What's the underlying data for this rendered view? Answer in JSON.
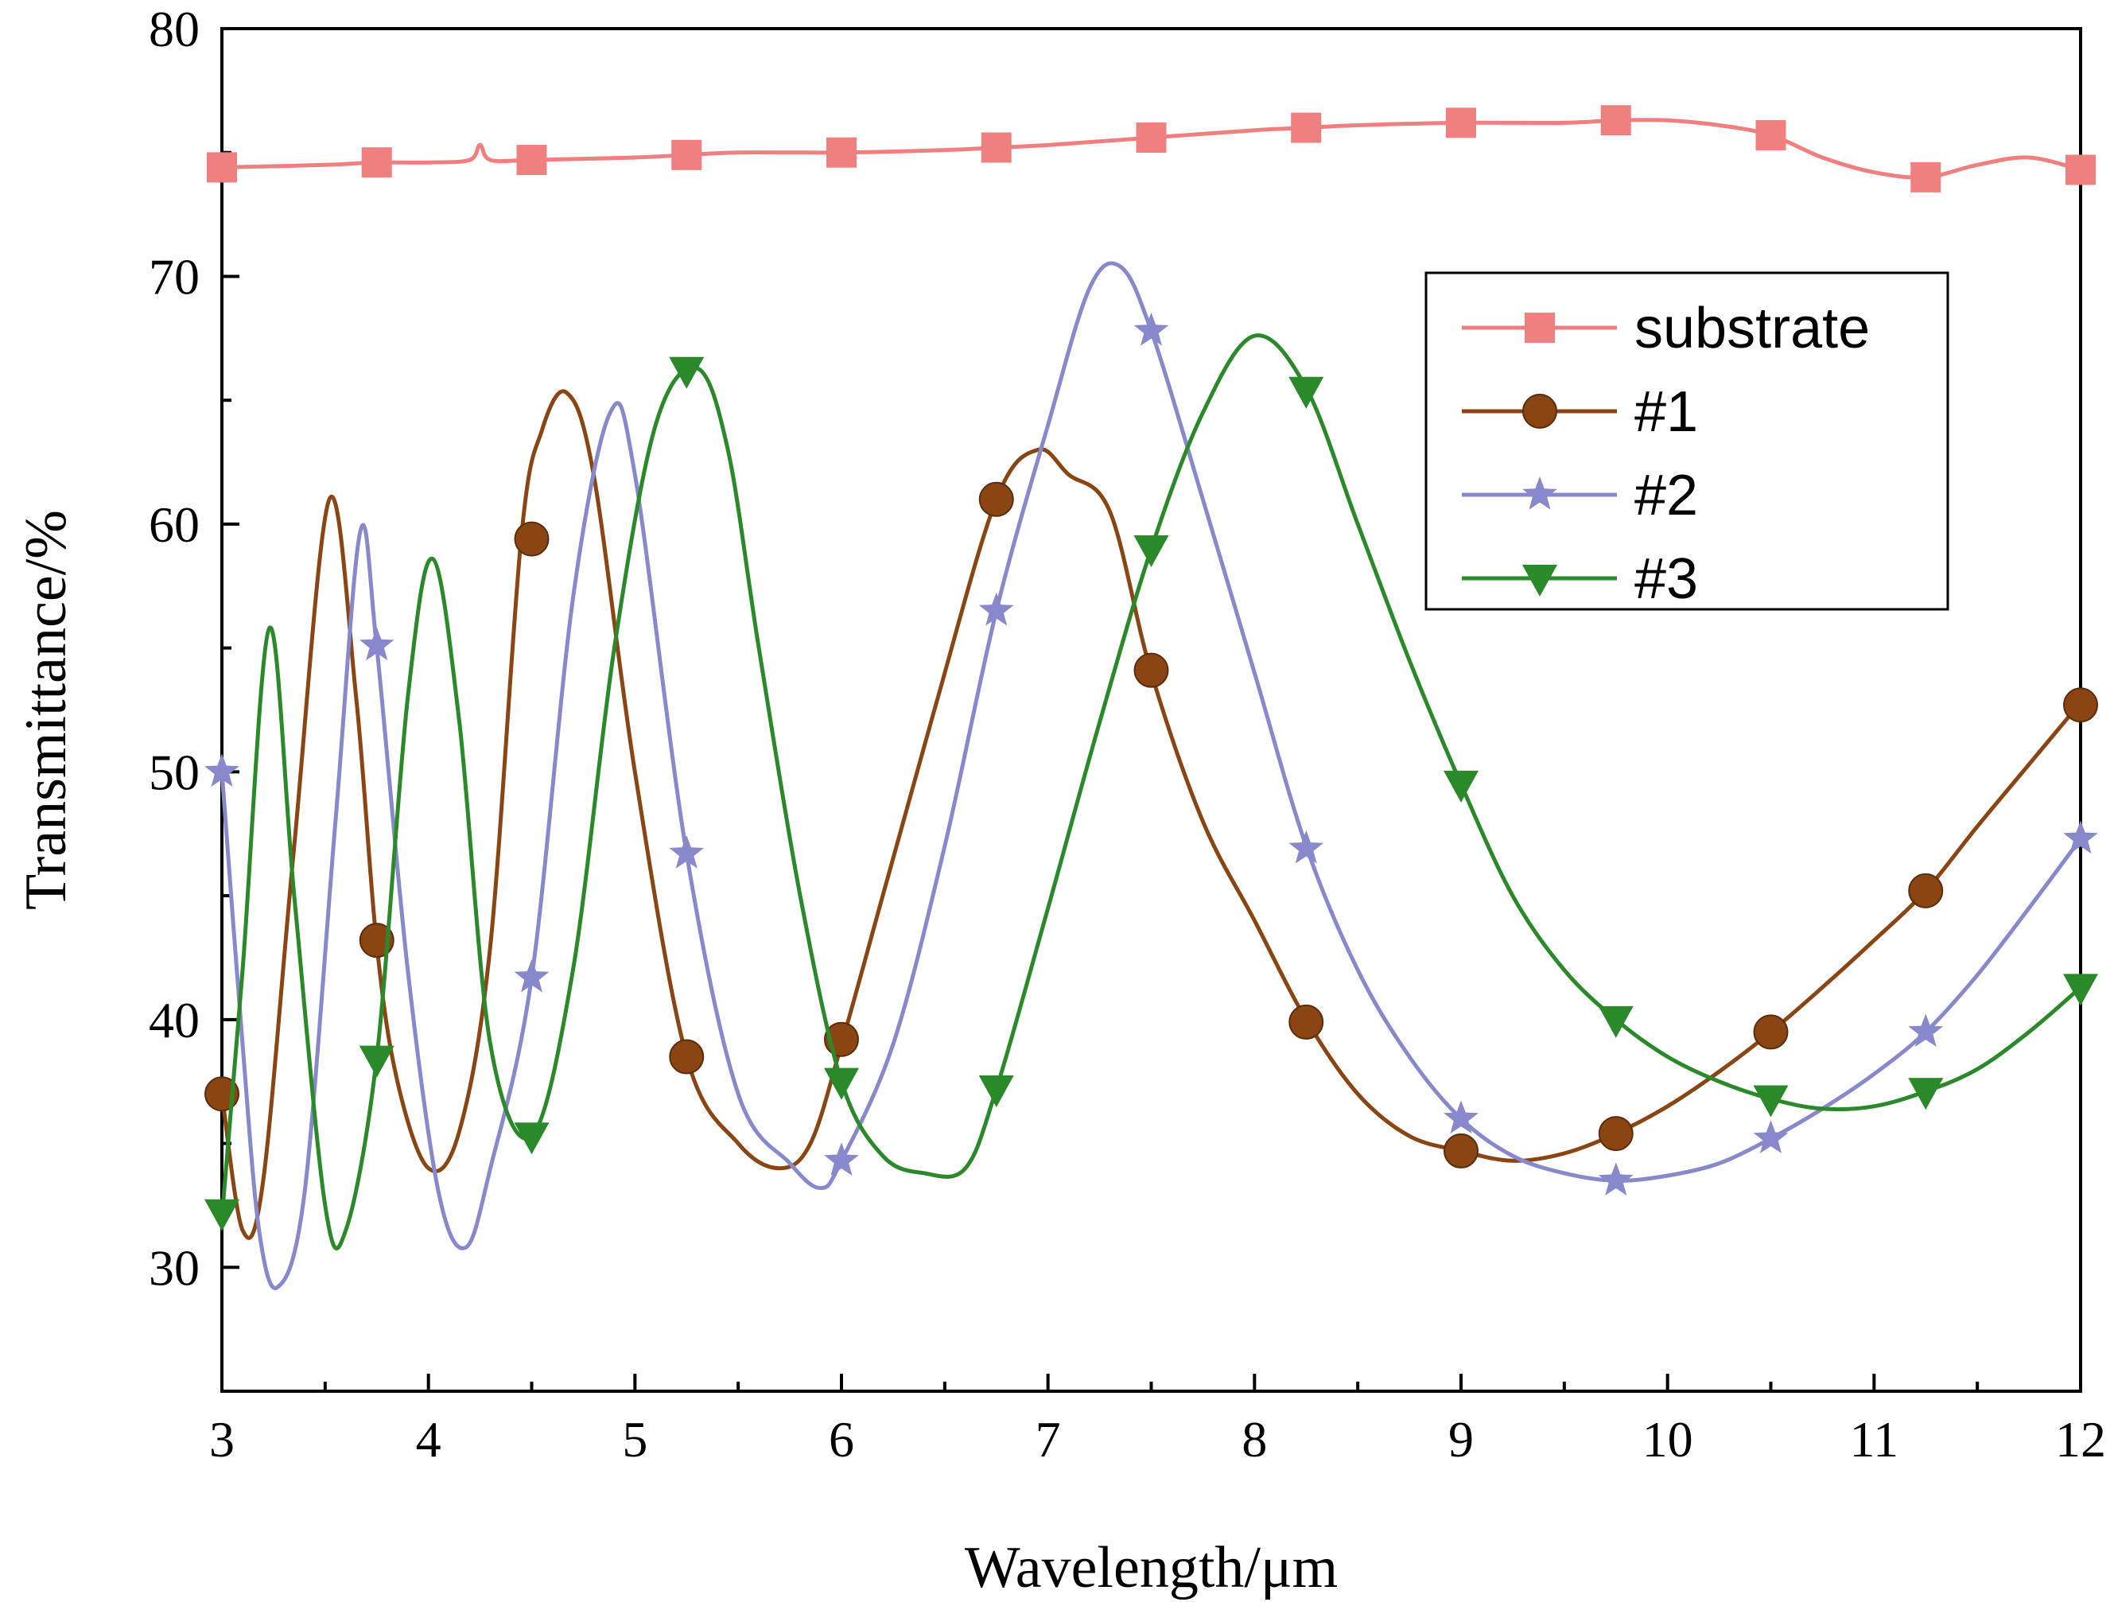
{
  "chart_data": {
    "type": "line",
    "title": "",
    "xlabel": "Wavelength/μm",
    "ylabel": "Transmittance/%",
    "xlim": [
      3,
      12
    ],
    "ylim": [
      25,
      80
    ],
    "xticks": [
      3,
      4,
      5,
      6,
      7,
      8,
      9,
      10,
      11,
      12
    ],
    "yticks": [
      30,
      40,
      50,
      60,
      70,
      80
    ],
    "legend_position": "top-right",
    "series": [
      {
        "name": "substrate",
        "color": "#f08080",
        "marker": "square",
        "x": [
          3.0,
          3.5,
          3.75,
          4.0,
          4.2,
          4.25,
          4.3,
          4.5,
          5.0,
          5.25,
          5.5,
          6.0,
          6.5,
          6.75,
          7.0,
          7.5,
          8.0,
          8.25,
          8.5,
          9.0,
          9.5,
          9.75,
          10.0,
          10.25,
          10.5,
          10.75,
          11.0,
          11.25,
          11.5,
          11.75,
          12.0
        ],
        "y": [
          74.4,
          74.5,
          74.6,
          74.6,
          74.7,
          75.3,
          74.7,
          74.7,
          74.8,
          74.9,
          75.0,
          75.0,
          75.1,
          75.2,
          75.3,
          75.6,
          75.9,
          76.0,
          76.1,
          76.2,
          76.2,
          76.3,
          76.3,
          76.1,
          75.7,
          74.8,
          74.2,
          74.0,
          74.5,
          74.8,
          74.3
        ],
        "markers_x": [
          3.0,
          3.75,
          4.5,
          5.25,
          6.0,
          6.75,
          7.5,
          8.25,
          9.0,
          9.75,
          10.5,
          11.25,
          12.0
        ],
        "markers_y": [
          74.4,
          74.6,
          74.7,
          74.9,
          75.0,
          75.2,
          75.6,
          76.0,
          76.2,
          76.3,
          75.7,
          74.0,
          74.3
        ]
      },
      {
        "name": "#1",
        "color": "#8b4513",
        "marker": "circle",
        "x": [
          3.0,
          3.1,
          3.2,
          3.35,
          3.52,
          3.65,
          3.75,
          3.85,
          4.0,
          4.15,
          4.3,
          4.45,
          4.55,
          4.67,
          4.8,
          5.0,
          5.25,
          5.5,
          5.7,
          5.85,
          6.0,
          6.2,
          6.45,
          6.75,
          6.95,
          7.1,
          7.3,
          7.5,
          7.75,
          8.0,
          8.25,
          8.5,
          8.75,
          9.0,
          9.25,
          9.5,
          9.75,
          10.0,
          10.25,
          10.5,
          10.75,
          11.0,
          11.25,
          11.5,
          11.75,
          12.0
        ],
        "y": [
          37.0,
          31.5,
          33.5,
          47.0,
          61.0,
          53.0,
          43.0,
          37.5,
          34.0,
          35.5,
          43.0,
          59.5,
          63.8,
          65.3,
          62.0,
          50.0,
          38.5,
          35.0,
          34.0,
          35.0,
          39.0,
          45.0,
          52.5,
          61.0,
          63.0,
          62.0,
          60.5,
          54.0,
          48.0,
          44.0,
          40.0,
          37.0,
          35.3,
          34.7,
          34.3,
          34.6,
          35.4,
          36.5,
          37.9,
          39.5,
          41.3,
          43.2,
          45.2,
          47.8,
          50.3,
          52.8
        ],
        "markers_x": [
          3.0,
          3.75,
          4.5,
          5.25,
          6.0,
          6.75,
          7.5,
          8.25,
          9.0,
          9.75,
          10.5,
          11.25,
          12.0
        ],
        "markers_y": [
          37.0,
          43.2,
          59.4,
          38.5,
          39.2,
          61.0,
          54.1,
          39.9,
          34.7,
          35.4,
          39.5,
          45.2,
          52.7
        ]
      },
      {
        "name": "#2",
        "color": "#8888cc",
        "marker": "star",
        "x": [
          3.0,
          3.1,
          3.18,
          3.27,
          3.4,
          3.55,
          3.67,
          3.75,
          3.9,
          4.05,
          4.18,
          4.3,
          4.5,
          4.7,
          4.88,
          5.0,
          5.25,
          5.5,
          5.75,
          5.9,
          6.0,
          6.25,
          6.5,
          6.75,
          7.0,
          7.2,
          7.35,
          7.5,
          7.75,
          8.0,
          8.25,
          8.5,
          8.75,
          9.0,
          9.25,
          9.5,
          9.75,
          10.0,
          10.25,
          10.5,
          10.75,
          11.0,
          11.25,
          11.5,
          11.75,
          12.0
        ],
        "y": [
          50.0,
          39.0,
          31.5,
          29.2,
          33.0,
          48.0,
          59.7,
          55.0,
          42.0,
          33.0,
          30.8,
          34.0,
          41.7,
          57.0,
          64.5,
          62.0,
          46.7,
          37.0,
          34.2,
          33.2,
          34.3,
          39.0,
          47.0,
          56.5,
          64.0,
          69.5,
          70.4,
          67.8,
          61.0,
          54.0,
          47.0,
          42.0,
          38.5,
          36.0,
          34.5,
          33.8,
          33.5,
          33.7,
          34.2,
          35.2,
          36.4,
          37.8,
          39.5,
          41.8,
          44.5,
          47.3
        ],
        "markers_x": [
          3.0,
          3.75,
          4.5,
          5.25,
          6.0,
          6.75,
          7.5,
          8.25,
          9.0,
          9.75,
          10.5,
          11.25,
          12.0
        ],
        "markers_y": [
          50.0,
          55.1,
          41.7,
          46.7,
          34.3,
          56.5,
          67.8,
          46.9,
          36.0,
          33.5,
          35.2,
          39.5,
          47.3
        ]
      },
      {
        "name": "#3",
        "color": "#2a8a2a",
        "marker": "triangle-down",
        "x": [
          3.0,
          3.1,
          3.23,
          3.35,
          3.5,
          3.6,
          3.75,
          3.9,
          4.02,
          4.15,
          4.3,
          4.5,
          4.7,
          4.9,
          5.1,
          5.3,
          5.45,
          5.6,
          5.8,
          6.0,
          6.2,
          6.4,
          6.6,
          6.75,
          7.0,
          7.25,
          7.5,
          7.75,
          8.0,
          8.25,
          8.5,
          8.75,
          9.0,
          9.25,
          9.5,
          9.75,
          10.0,
          10.25,
          10.5,
          10.75,
          11.0,
          11.25,
          11.5,
          11.75,
          12.0
        ],
        "y": [
          32.0,
          42.0,
          55.8,
          45.0,
          32.5,
          31.5,
          38.5,
          53.0,
          58.6,
          52.0,
          39.0,
          35.3,
          42.0,
          55.0,
          64.0,
          66.3,
          63.0,
          55.0,
          45.0,
          37.5,
          34.5,
          33.8,
          34.0,
          37.2,
          44.5,
          52.0,
          59.0,
          64.5,
          67.6,
          65.5,
          60.0,
          54.5,
          49.5,
          45.0,
          42.0,
          40.0,
          38.5,
          37.5,
          36.8,
          36.4,
          36.5,
          37.1,
          38.0,
          39.5,
          41.3
        ],
        "markers_x": [
          3.0,
          3.75,
          4.5,
          5.25,
          6.0,
          6.75,
          7.5,
          8.25,
          9.0,
          9.75,
          10.5,
          11.25,
          12.0
        ],
        "markers_y": [
          32.2,
          38.4,
          35.3,
          66.2,
          37.5,
          37.2,
          59.0,
          65.4,
          49.5,
          40.0,
          36.8,
          37.1,
          41.3
        ]
      }
    ]
  }
}
